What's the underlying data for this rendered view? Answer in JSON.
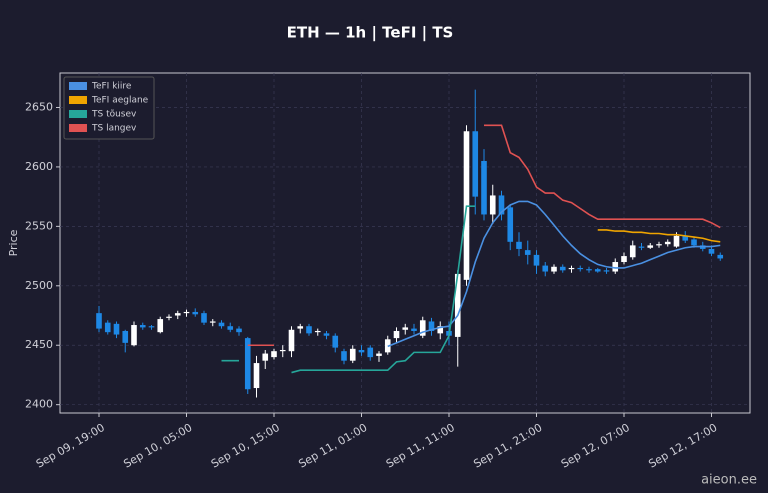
{
  "chart_data": {
    "type": "candlestick",
    "title": "ETH — 1h  |  TeFI  |  TS",
    "y_label": "Price",
    "watermark": "aieon.ee",
    "categories": [
      "Sep 09, 19:00",
      null,
      null,
      null,
      null,
      null,
      null,
      null,
      null,
      null,
      "Sep 10, 05:00",
      null,
      null,
      null,
      null,
      null,
      null,
      null,
      null,
      null,
      "Sep 10, 15:00",
      null,
      null,
      null,
      null,
      null,
      null,
      null,
      null,
      null,
      "Sep 11, 01:00",
      null,
      null,
      null,
      null,
      null,
      null,
      null,
      null,
      null,
      "Sep 11, 11:00",
      null,
      null,
      null,
      null,
      null,
      null,
      null,
      null,
      null,
      "Sep 11, 21:00",
      null,
      null,
      null,
      null,
      null,
      null,
      null,
      null,
      null,
      "Sep 12, 07:00",
      null,
      null,
      null,
      null,
      null,
      null,
      null,
      null,
      null,
      "Sep 12, 17:00",
      null
    ],
    "up_color": "#ffffff",
    "down_color": "#1e88e5",
    "open": [
      2477,
      2469,
      2468,
      2462,
      2450,
      2467,
      2466,
      2461,
      2473,
      2475,
      2477,
      2478,
      2477,
      2469,
      2469,
      2466,
      2464,
      2456,
      2414,
      2437,
      2440,
      2445,
      2445,
      2464,
      2466,
      2461,
      2460,
      2458,
      2445,
      2437,
      2446,
      2448,
      2441,
      2444,
      2456,
      2463,
      2464,
      2458,
      2470,
      2460,
      2462,
      2457,
      2505,
      2630,
      2605,
      2560,
      2576,
      2566,
      2537,
      2530,
      2526,
      2517,
      2512,
      2516,
      2514,
      2515,
      2514,
      2514,
      2513,
      2512,
      2520,
      2524,
      2533,
      2532,
      2534,
      2535,
      2533,
      2542,
      2539,
      2534,
      2531,
      2526
    ],
    "high": [
      2483,
      2471,
      2470,
      2463,
      2470,
      2469,
      2467,
      2474,
      2476,
      2479,
      2480,
      2481,
      2479,
      2472,
      2471,
      2469,
      2466,
      2457,
      2441,
      2446,
      2447,
      2450,
      2466,
      2468,
      2468,
      2464,
      2462,
      2460,
      2447,
      2450,
      2450,
      2450,
      2445,
      2458,
      2465,
      2468,
      2468,
      2474,
      2473,
      2470,
      2470,
      2513,
      2635,
      2665,
      2615,
      2585,
      2580,
      2568,
      2545,
      2538,
      2530,
      2520,
      2518,
      2518,
      2517,
      2517,
      2516,
      2515,
      2515,
      2523,
      2528,
      2538,
      2536,
      2536,
      2537,
      2539,
      2545,
      2546,
      2541,
      2537,
      2534,
      2528
    ],
    "low": [
      2461,
      2459,
      2456,
      2444,
      2449,
      2463,
      2463,
      2460,
      2471,
      2472,
      2474,
      2474,
      2467,
      2466,
      2464,
      2461,
      2458,
      2409,
      2406,
      2430,
      2438,
      2440,
      2440,
      2460,
      2458,
      2458,
      2455,
      2444,
      2434,
      2435,
      2441,
      2437,
      2436,
      2442,
      2452,
      2459,
      2459,
      2456,
      2458,
      2455,
      2450,
      2432,
      2500,
      2560,
      2555,
      2552,
      2555,
      2530,
      2525,
      2518,
      2510,
      2508,
      2510,
      2511,
      2511,
      2512,
      2511,
      2511,
      2510,
      2510,
      2518,
      2522,
      2530,
      2531,
      2532,
      2533,
      2532,
      2536,
      2532,
      2529,
      2525,
      2521
    ],
    "close": [
      2464,
      2461,
      2459,
      2452,
      2467,
      2465,
      2465,
      2472,
      2474,
      2477,
      2478,
      2476,
      2469,
      2470,
      2466,
      2463,
      2461,
      2413,
      2435,
      2443,
      2445,
      2446,
      2463,
      2466,
      2460,
      2462,
      2458,
      2448,
      2437,
      2447,
      2444,
      2440,
      2443,
      2455,
      2462,
      2465,
      2462,
      2471,
      2462,
      2466,
      2458,
      2510,
      2630,
      2575,
      2560,
      2576,
      2560,
      2537,
      2531,
      2526,
      2517,
      2512,
      2516,
      2513,
      2515,
      2514,
      2513,
      2512,
      2512,
      2520,
      2525,
      2534,
      2532,
      2534,
      2535,
      2537,
      2542,
      2538,
      2534,
      2531,
      2527,
      2523
    ],
    "series": [
      {
        "name": "TeFI kiire",
        "color": "#4a90e2",
        "values": [
          null,
          null,
          null,
          null,
          null,
          null,
          null,
          null,
          null,
          null,
          null,
          null,
          null,
          null,
          null,
          null,
          null,
          null,
          null,
          null,
          null,
          null,
          null,
          null,
          null,
          null,
          null,
          null,
          null,
          null,
          null,
          null,
          null,
          2449,
          2452,
          2455,
          2458,
          2461,
          2463,
          2465,
          2466,
          2475,
          2495,
          2520,
          2540,
          2553,
          2562,
          2568,
          2571,
          2571,
          2568,
          2560,
          2551,
          2542,
          2534,
          2527,
          2522,
          2518,
          2516,
          2515,
          2515,
          2517,
          2519,
          2522,
          2525,
          2528,
          2530,
          2532,
          2533,
          2533,
          2533,
          2534
        ]
      },
      {
        "name": "TeFI aeglane",
        "color": "#f0a500",
        "values": [
          null,
          null,
          null,
          null,
          null,
          null,
          null,
          null,
          null,
          null,
          null,
          null,
          null,
          null,
          null,
          null,
          null,
          null,
          null,
          null,
          null,
          null,
          null,
          null,
          null,
          null,
          null,
          null,
          null,
          null,
          null,
          null,
          null,
          null,
          null,
          null,
          null,
          null,
          null,
          null,
          null,
          null,
          null,
          null,
          null,
          null,
          null,
          null,
          null,
          null,
          null,
          null,
          null,
          null,
          null,
          null,
          null,
          2547,
          2547,
          2546,
          2546,
          2545,
          2545,
          2544,
          2544,
          2543,
          2543,
          2542,
          2541,
          2540,
          2538,
          2537
        ]
      },
      {
        "name": "TS tõusev",
        "color": "#26a69a",
        "values": [
          null,
          null,
          null,
          null,
          null,
          null,
          null,
          null,
          null,
          null,
          null,
          null,
          null,
          null,
          2437,
          2437,
          2437,
          null,
          null,
          null,
          null,
          null,
          2427,
          2429,
          2429,
          2429,
          2429,
          2429,
          2429,
          2429,
          2429,
          2429,
          2429,
          2429,
          2436,
          2437,
          2444,
          2444,
          2444,
          2444,
          2458,
          2510,
          2567,
          2567,
          null,
          null,
          null,
          null,
          null,
          null,
          null,
          null,
          null,
          null,
          null,
          null,
          null,
          null,
          null,
          null,
          null,
          null,
          null,
          null,
          null,
          null,
          null,
          null,
          null,
          null,
          null,
          null
        ]
      },
      {
        "name": "TS langev",
        "color": "#e05252",
        "values": [
          null,
          null,
          null,
          null,
          null,
          null,
          null,
          null,
          null,
          null,
          null,
          null,
          null,
          null,
          null,
          null,
          null,
          2450,
          2450,
          2450,
          2450,
          null,
          null,
          null,
          null,
          null,
          null,
          null,
          null,
          null,
          null,
          null,
          null,
          null,
          null,
          null,
          null,
          null,
          null,
          null,
          null,
          null,
          null,
          null,
          2635,
          2635,
          2635,
          2612,
          2608,
          2598,
          2583,
          2578,
          2578,
          2572,
          2570,
          2565,
          2560,
          2556,
          2556,
          2556,
          2556,
          2556,
          2556,
          2556,
          2556,
          2556,
          2556,
          2556,
          2556,
          2556,
          2553,
          2549
        ]
      }
    ],
    "ylim": [
      2393,
      2679
    ],
    "yticks": [
      2400,
      2450,
      2500,
      2550,
      2600,
      2650
    ],
    "grid": true,
    "legend": "upper-left"
  }
}
